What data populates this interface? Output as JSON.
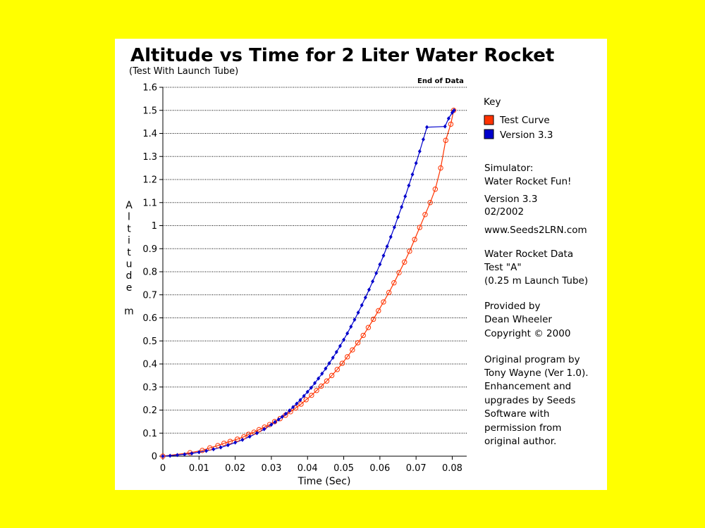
{
  "chart_data": {
    "type": "line",
    "title": "Altitude vs Time for 2 Liter Water Rocket",
    "subtitle": "(Test With Launch Tube)",
    "xlabel": "Time (Sec)",
    "ylabel": "Altitude m",
    "ylabel_letters": [
      "A",
      "l",
      "t",
      "i",
      "t",
      "u",
      "d",
      "e",
      "",
      "m"
    ],
    "xlim": [
      0,
      0.084
    ],
    "ylim": [
      0,
      1.6
    ],
    "x_ticks": [
      "0",
      "0.01",
      "0.02",
      "0.03",
      "0.04",
      "0.05",
      "0.06",
      "0.07",
      "0.08"
    ],
    "y_ticks": [
      "0",
      "0.1",
      "0.2",
      "0.3",
      "0.4",
      "0.5",
      "0.6",
      "0.7",
      "0.8",
      "0.9",
      "1",
      "1.1",
      "1.2",
      "1.3",
      "1.4",
      "1.5",
      "1.6"
    ],
    "grid": "horizontal dotted",
    "annotation": "End of Data",
    "legend_title": "Key",
    "series": [
      {
        "name": "Test Curve",
        "color": "#ff3300",
        "marker": "open-circle",
        "x": [
          0,
          0.0075,
          0.0109,
          0.013,
          0.0152,
          0.0169,
          0.0186,
          0.0206,
          0.0224,
          0.0237,
          0.0252,
          0.0266,
          0.0281,
          0.0295,
          0.0309,
          0.0324,
          0.0339,
          0.0353,
          0.0367,
          0.0382,
          0.0396,
          0.0411,
          0.0425,
          0.0438,
          0.0453,
          0.0467,
          0.0482,
          0.0496,
          0.051,
          0.0524,
          0.0539,
          0.0554,
          0.0568,
          0.0582,
          0.0596,
          0.061,
          0.0625,
          0.0639,
          0.0653,
          0.0668,
          0.0682,
          0.0696,
          0.071,
          0.0725,
          0.0739,
          0.0753,
          0.0768,
          0.0782,
          0.0796,
          0.0804
        ],
        "y": [
          0.0,
          0.015,
          0.025,
          0.036,
          0.046,
          0.056,
          0.064,
          0.074,
          0.084,
          0.095,
          0.104,
          0.115,
          0.126,
          0.137,
          0.15,
          0.163,
          0.178,
          0.193,
          0.209,
          0.226,
          0.245,
          0.264,
          0.285,
          0.304,
          0.326,
          0.35,
          0.376,
          0.403,
          0.431,
          0.461,
          0.492,
          0.524,
          0.558,
          0.594,
          0.631,
          0.669,
          0.71,
          0.752,
          0.796,
          0.842,
          0.889,
          0.94,
          0.992,
          1.048,
          1.1,
          1.158,
          1.25,
          1.37,
          1.44,
          1.5
        ]
      },
      {
        "name": "Version 3.3",
        "color": "#0000cc",
        "marker": "filled-diamond",
        "x": [
          0,
          0.002,
          0.004,
          0.006,
          0.008,
          0.01,
          0.012,
          0.014,
          0.016,
          0.018,
          0.02,
          0.022,
          0.024,
          0.026,
          0.028,
          0.03,
          0.031,
          0.032,
          0.033,
          0.034,
          0.035,
          0.036,
          0.037,
          0.038,
          0.039,
          0.04,
          0.041,
          0.042,
          0.043,
          0.044,
          0.045,
          0.046,
          0.047,
          0.048,
          0.049,
          0.05,
          0.051,
          0.052,
          0.053,
          0.054,
          0.055,
          0.056,
          0.057,
          0.058,
          0.059,
          0.06,
          0.061,
          0.062,
          0.063,
          0.064,
          0.065,
          0.066,
          0.067,
          0.068,
          0.069,
          0.07,
          0.071,
          0.072,
          0.073,
          0.074,
          0.075,
          0.076,
          0.077,
          0.078,
          0.079,
          0.08,
          0.081
        ],
        "y": [
          0.0,
          0.002,
          0.005,
          0.008,
          0.012,
          0.017,
          0.023,
          0.03,
          0.038,
          0.048,
          0.059,
          0.071,
          0.085,
          0.1,
          0.117,
          0.137,
          0.148,
          0.159,
          0.171,
          0.184,
          0.198,
          0.213,
          0.228,
          0.244,
          0.261,
          0.279,
          0.297,
          0.317,
          0.337,
          0.358,
          0.38,
          0.403,
          0.427,
          0.452,
          0.478,
          0.505,
          0.533,
          0.562,
          0.592,
          0.623,
          0.655,
          0.688,
          0.722,
          0.758,
          0.794,
          0.832,
          0.87,
          0.91,
          0.951,
          0.993,
          1.037,
          1.081,
          1.127,
          1.174,
          1.222,
          1.271,
          1.322,
          1.374,
          1.427,
          1.481,
          1.5,
          1.37,
          1.42,
          1.46,
          1.49,
          1.5,
          1.51
        ]
      }
    ]
  },
  "sidebar": {
    "lines": [
      "Simulator:",
      "Water Rocket Fun!",
      "Version 3.3",
      "02/2002",
      "www.Seeds2LRN.com",
      "Water Rocket Data",
      "Test \"A\"",
      "(0.25 m Launch Tube)",
      "Provided by",
      "Dean Wheeler",
      "Copyright © 2000",
      "Original program by",
      "Tony Wayne (Ver 1.0).",
      "Enhancement and",
      "upgrades by Seeds",
      "Software with",
      "permission from",
      "original author."
    ]
  }
}
